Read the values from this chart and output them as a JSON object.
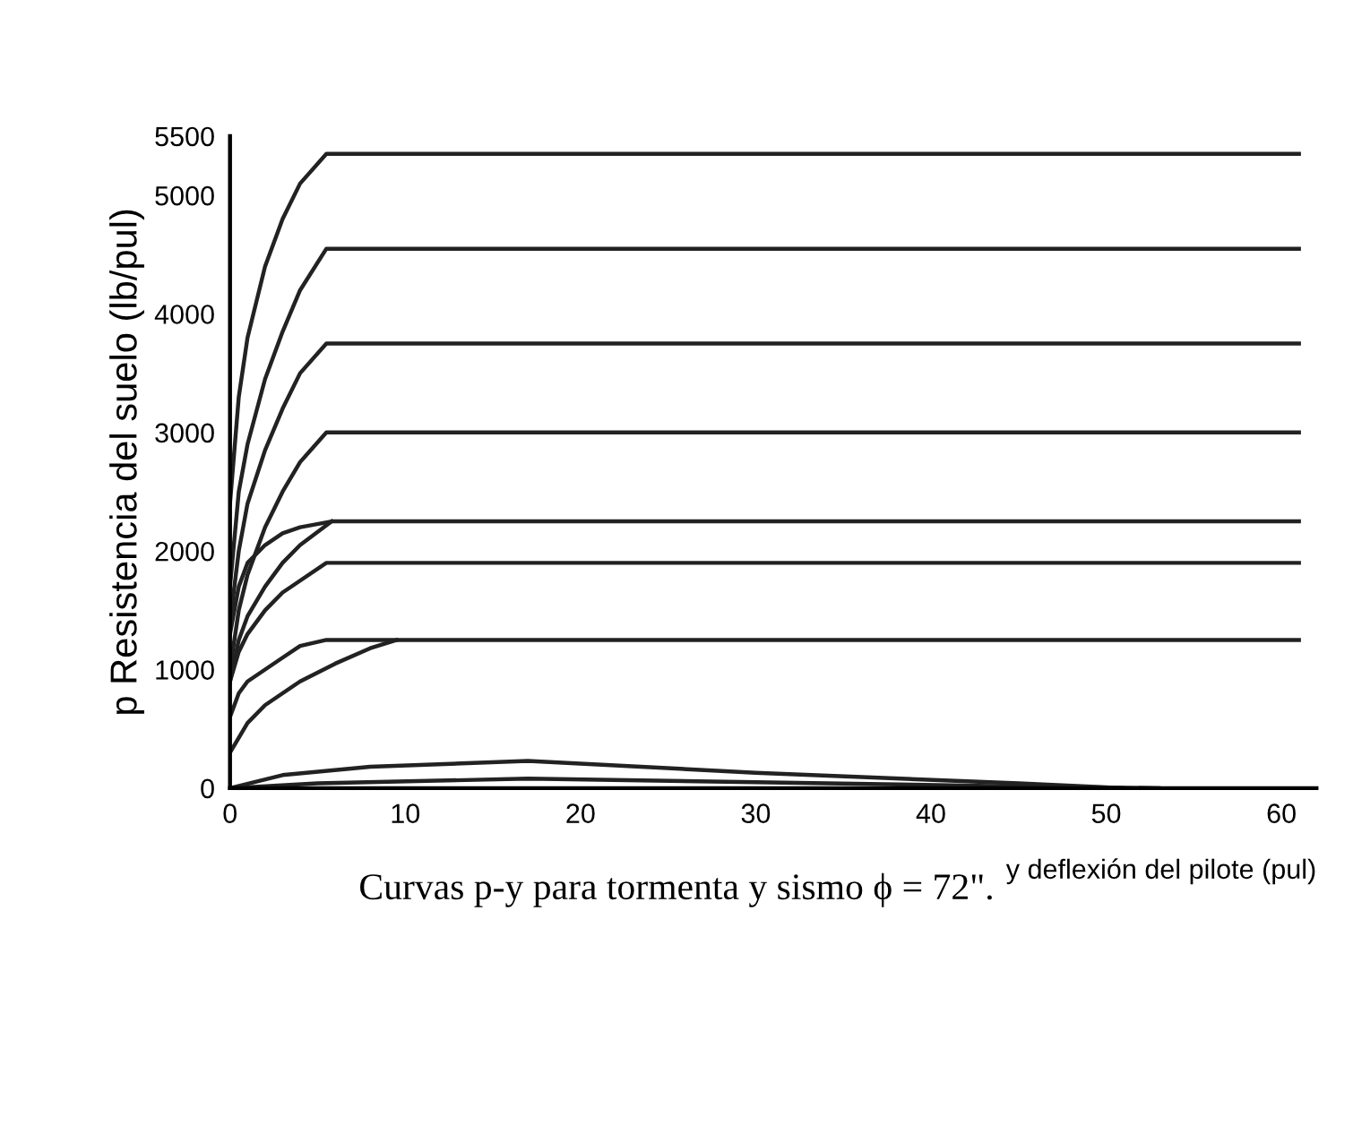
{
  "chart_data": {
    "type": "line",
    "xlabel": "y deflexión del pilote (pul)",
    "ylabel": "p Resistencia del suelo (lb/pul)",
    "annotations": [
      "Curvas p-y para tormenta y sismo ϕ = 72\"."
    ],
    "xlim": [
      0,
      62
    ],
    "ylim": [
      0,
      5500
    ],
    "xticks": [
      0,
      10,
      20,
      30,
      40,
      50,
      60
    ],
    "yticks": [
      0,
      1000,
      2000,
      3000,
      4000,
      5000,
      5500
    ],
    "grid": false,
    "legend": false,
    "marker": "none",
    "line_style": "solid",
    "series": [
      {
        "color": "#222222",
        "x": [
          0,
          0.5,
          1,
          2,
          3,
          4,
          5.5,
          61
        ],
        "values": [
          2400,
          3300,
          3800,
          4400,
          4800,
          5100,
          5350,
          5350
        ]
      },
      {
        "color": "#222222",
        "x": [
          0,
          0.5,
          1,
          2,
          3,
          4,
          5.5,
          61
        ],
        "values": [
          1700,
          2500,
          2900,
          3450,
          3850,
          4200,
          4550,
          4550
        ]
      },
      {
        "color": "#222222",
        "x": [
          0,
          0.5,
          1,
          2,
          3,
          4,
          5.5,
          61
        ],
        "values": [
          1400,
          2000,
          2400,
          2850,
          3200,
          3500,
          3750,
          3750
        ]
      },
      {
        "color": "#222222",
        "x": [
          0,
          0.5,
          1,
          2,
          3,
          4,
          5.5,
          61
        ],
        "values": [
          1000,
          1500,
          1800,
          2200,
          2500,
          2750,
          3000,
          3000
        ]
      },
      {
        "color": "#222222",
        "x": [
          0,
          0.5,
          1,
          2,
          3,
          4,
          5.8,
          61
        ],
        "values": [
          1300,
          1700,
          1900,
          2050,
          2150,
          2200,
          2250,
          2250
        ]
      },
      {
        "color": "#222222",
        "x": [
          0,
          0.5,
          1,
          2,
          3,
          4,
          5.8
        ],
        "values": [
          900,
          1250,
          1450,
          1700,
          1900,
          2050,
          2250
        ]
      },
      {
        "color": "#222222",
        "x": [
          0,
          0.5,
          1,
          2,
          3,
          4,
          5.5,
          61
        ],
        "values": [
          900,
          1150,
          1300,
          1500,
          1650,
          1750,
          1900,
          1900
        ]
      },
      {
        "color": "#222222",
        "x": [
          0,
          0.5,
          1,
          2,
          3,
          4,
          5.5,
          61
        ],
        "values": [
          600,
          800,
          900,
          1000,
          1100,
          1200,
          1250,
          1250
        ]
      },
      {
        "color": "#222222",
        "x": [
          0,
          1,
          2,
          4,
          6,
          8,
          9.5
        ],
        "values": [
          300,
          550,
          700,
          900,
          1050,
          1180,
          1250
        ]
      },
      {
        "color": "#222222",
        "x": [
          0,
          3,
          8,
          17,
          30,
          45,
          51
        ],
        "values": [
          0,
          110,
          180,
          230,
          130,
          40,
          0
        ]
      },
      {
        "color": "#222222",
        "x": [
          0,
          5,
          17,
          30,
          45,
          53
        ],
        "values": [
          0,
          40,
          80,
          50,
          15,
          0
        ]
      }
    ]
  }
}
